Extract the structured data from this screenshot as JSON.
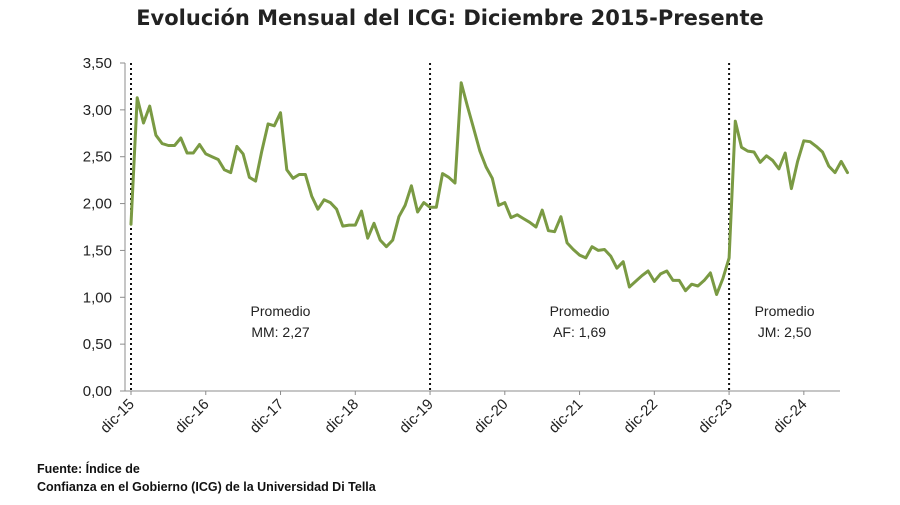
{
  "chart_data": {
    "type": "line",
    "title": "Evolución Mensual del ICG: Diciembre 2015-Presente",
    "xlabel": "",
    "ylabel": "",
    "ylim": [
      0,
      3.5
    ],
    "yticks": [
      "0,00",
      "0,50",
      "1,00",
      "1,50",
      "2,00",
      "2,50",
      "3,00",
      "3,50"
    ],
    "xticks": [
      "dic-15",
      "dic-16",
      "dic-17",
      "dic-18",
      "dic-19",
      "dic-20",
      "dic-21",
      "dic-22",
      "dic-23",
      "dic-24"
    ],
    "grid": false,
    "series_color": "#7a9a43",
    "start_month": "dic-15",
    "series": [
      {
        "values": [
          1.78,
          3.13,
          2.86,
          3.04,
          2.73,
          2.64,
          2.62,
          2.62,
          2.7,
          2.54,
          2.54,
          2.63,
          2.53,
          2.5,
          2.47,
          2.36,
          2.33,
          2.61,
          2.53,
          2.28,
          2.24,
          2.56,
          2.85,
          2.83,
          2.97,
          2.36,
          2.27,
          2.31,
          2.31,
          2.08,
          1.94,
          2.04,
          2.01,
          1.94,
          1.76,
          1.77,
          1.77,
          1.92,
          1.63,
          1.79,
          1.61,
          1.54,
          1.61,
          1.86,
          1.98,
          2.19,
          1.91,
          2.01,
          1.96,
          1.96,
          2.32,
          2.28,
          2.22,
          3.29,
          3.04,
          2.8,
          2.56,
          2.39,
          2.27,
          1.98,
          2.01,
          1.85,
          1.88,
          1.84,
          1.8,
          1.75,
          1.93,
          1.71,
          1.7,
          1.86,
          1.58,
          1.51,
          1.45,
          1.42,
          1.54,
          1.5,
          1.51,
          1.44,
          1.31,
          1.38,
          1.11,
          1.17,
          1.23,
          1.28,
          1.17,
          1.25,
          1.28,
          1.18,
          1.18,
          1.07,
          1.14,
          1.12,
          1.18,
          1.26,
          1.03,
          1.2,
          1.42,
          2.88,
          2.6,
          2.56,
          2.55,
          2.44,
          2.51,
          2.46,
          2.37,
          2.54,
          2.16,
          2.45,
          2.67,
          2.66,
          2.61,
          2.55,
          2.4,
          2.33,
          2.45,
          2.33
        ]
      }
    ],
    "dividers": [
      "dic-15",
      "dic-19",
      "dic-23"
    ],
    "annotations": [
      {
        "line1": "Promedio",
        "line2": "MM: 2,27"
      },
      {
        "line1": "Promedio",
        "line2": "AF: 1,69"
      },
      {
        "line1": "Promedio",
        "line2": "JM: 2,50"
      }
    ]
  },
  "source": {
    "line1": "Fuente: Índice de",
    "line2": "Confianza en el Gobierno (ICG) de la Universidad Di Tella"
  }
}
